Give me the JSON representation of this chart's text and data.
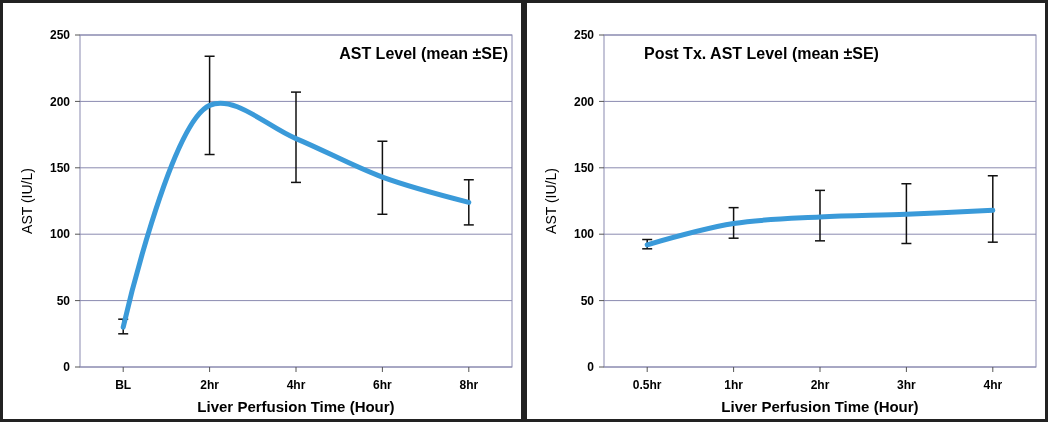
{
  "chart_data": [
    {
      "type": "line",
      "title": "AST Level (mean ±SE)",
      "xlabel": "Liver Perfusion Time (Hour)",
      "ylabel": "AST (IU/L)",
      "categories": [
        "BL",
        "2hr",
        "4hr",
        "6hr",
        "8hr"
      ],
      "series": [
        {
          "color": "#3a9ad9",
          "values": [
            30,
            197,
            172,
            143,
            124
          ],
          "errors": [
            [
              25,
              36
            ],
            [
              160,
              234
            ],
            [
              139,
              207
            ],
            [
              115,
              170
            ],
            [
              107,
              141
            ]
          ]
        }
      ],
      "ylim": [
        0,
        250
      ],
      "yticks": [
        0,
        50,
        100,
        150,
        200,
        250
      ],
      "grid": "y",
      "marker": "none",
      "line_style": "solid"
    },
    {
      "type": "line",
      "title": "Post Tx. AST Level (mean ±SE)",
      "xlabel": "Liver Perfusion Time (Hour)",
      "ylabel": "AST (IU/L)",
      "categories": [
        "0.5hr",
        "1hr",
        "2hr",
        "3hr",
        "4hr"
      ],
      "series": [
        {
          "color": "#3a9ad9",
          "values": [
            92,
            108,
            113,
            115,
            118
          ],
          "errors": [
            [
              89,
              96
            ],
            [
              97,
              120
            ],
            [
              95,
              133
            ],
            [
              93,
              138
            ],
            [
              94,
              144
            ]
          ]
        }
      ],
      "ylim": [
        0,
        250
      ],
      "yticks": [
        0,
        50,
        100,
        150,
        200,
        250
      ],
      "grid": "y",
      "marker": "none",
      "line_style": "solid"
    }
  ]
}
